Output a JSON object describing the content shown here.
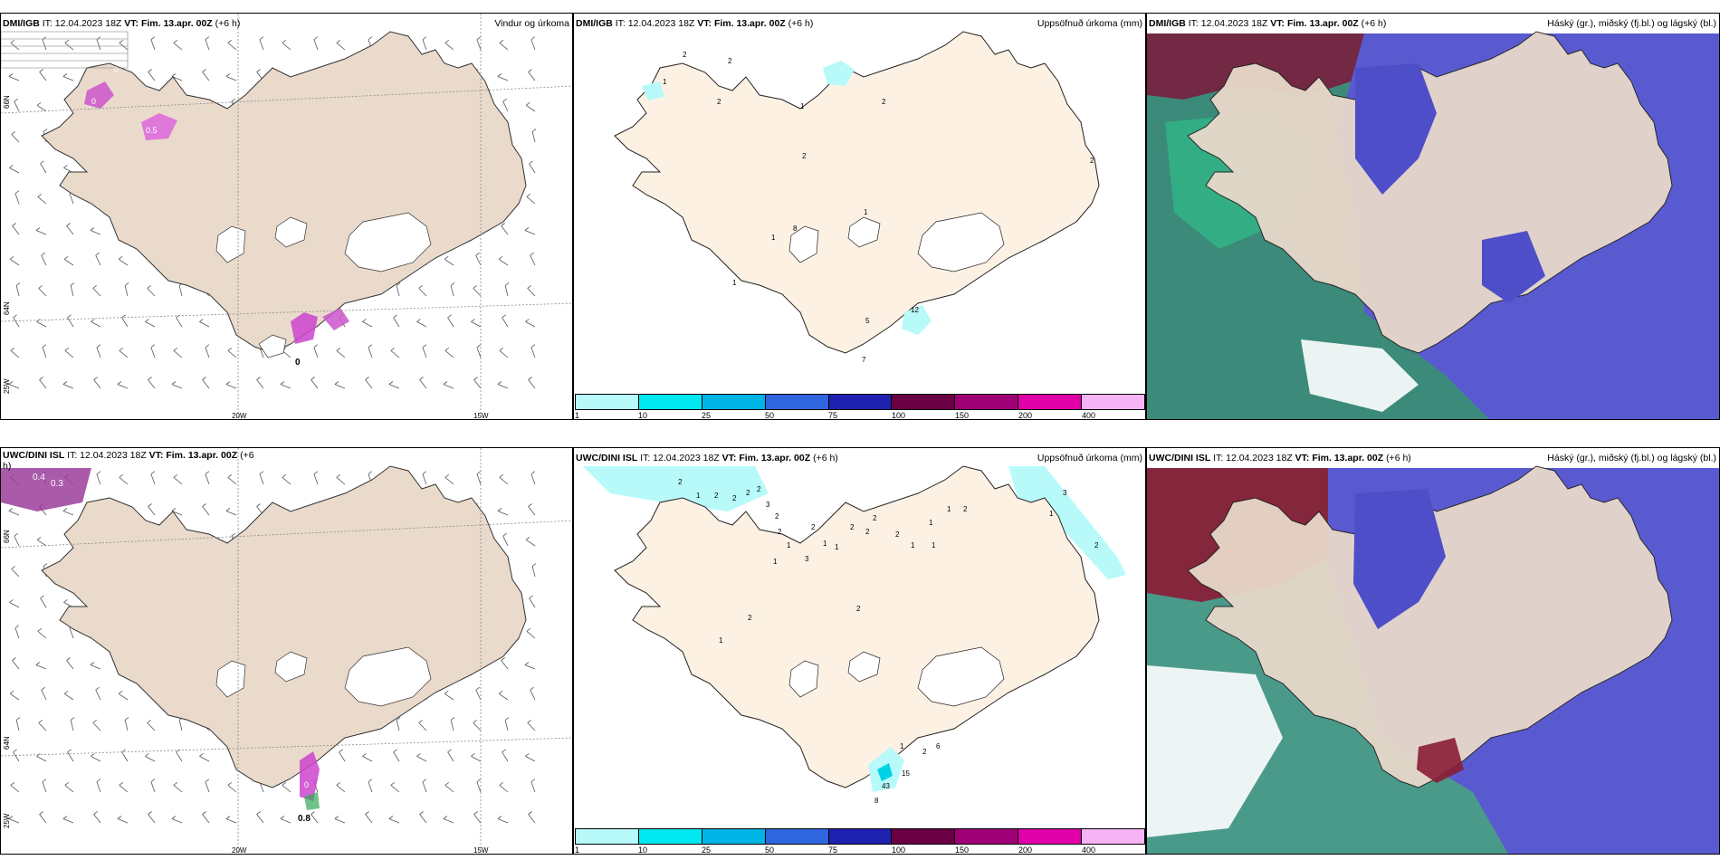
{
  "panels": [
    {
      "id": "p1",
      "model": "DMI/IGB",
      "it": "IT: 12.04.2023 18Z",
      "vt_label": "VT:",
      "vt": "Fim. 13.apr. 00Z",
      "lead": "(+6 h)",
      "product": "Vindur og úrkoma"
    },
    {
      "id": "p2",
      "model": "DMI/IGB",
      "it": "IT: 12.04.2023 18Z",
      "vt_label": "VT:",
      "vt": "Fim. 13.apr. 00Z",
      "lead": "(+6 h)",
      "product": "Uppsöfnuð úrkoma (mm)"
    },
    {
      "id": "p3",
      "model": "DMI/IGB",
      "it": "IT: 12.04.2023 18Z",
      "vt_label": "VT:",
      "vt": "Fim. 13.apr. 00Z",
      "lead": "(+6 h)",
      "product": "Háský (gr.), miðský (fj.bl.) og lágský (bl.)"
    },
    {
      "id": "p4",
      "model": "UWC/DINI ISL",
      "it": "IT: 12.04.2023 18Z",
      "vt_label": "VT:",
      "vt": "Fim. 13.apr. 00Z",
      "lead": "(+6",
      "lead_wrap": "h)",
      "product": ""
    },
    {
      "id": "p5",
      "model": "UWC/DINI ISL",
      "it": "IT: 12.04.2023 18Z",
      "vt_label": "VT:",
      "vt": "Fim. 13.apr. 00Z",
      "lead": "(+6 h)",
      "product": "Uppsöfnuð úrkoma (mm)"
    },
    {
      "id": "p6",
      "model": "UWC/DINI ISL",
      "it": "IT: 12.04.2023 18Z",
      "vt_label": "VT:",
      "vt": "Fim. 13.apr. 00Z",
      "lead": "(+6 h)",
      "product": "Háský (gr.), miðský (fj.bl.) og lágský (bl.)"
    }
  ],
  "coords": {
    "lat_66": "66N",
    "lat_64": "64N",
    "lon_20": "20W",
    "lon_15": "15W",
    "lon_25": "25W"
  },
  "colorbar": {
    "labels": [
      "1",
      "10",
      "25",
      "50",
      "75",
      "100",
      "150",
      "200",
      "400"
    ],
    "colors": [
      "#b8fafa",
      "#00e8f0",
      "#00b4e6",
      "#2f66e0",
      "#1f22b0",
      "#6a0044",
      "#a00076",
      "#e000a8",
      "#f7b4f5"
    ]
  },
  "wind_precip_labels_top": [
    "0",
    "0",
    "0.5",
    "0"
  ],
  "wind_precip_labels_bottom": [
    "0.4",
    "0.3",
    "0",
    "0",
    "0.8"
  ],
  "precip_values_top": [
    "2",
    "1",
    "2",
    "1",
    "2",
    "2",
    "1",
    "2",
    "1",
    "8",
    "1",
    "5",
    "12",
    "7",
    "2"
  ],
  "precip_values_bottom": [
    "2",
    "1",
    "2",
    "2",
    "2",
    "2",
    "3",
    "2",
    "2",
    "1",
    "1",
    "2",
    "3",
    "1",
    "1",
    "2",
    "2",
    "2",
    "2",
    "1",
    "1",
    "1",
    "1",
    "2",
    "3",
    "1",
    "2",
    "1",
    "2",
    "2",
    "15",
    "43",
    "6",
    "8",
    "2",
    "1"
  ]
}
